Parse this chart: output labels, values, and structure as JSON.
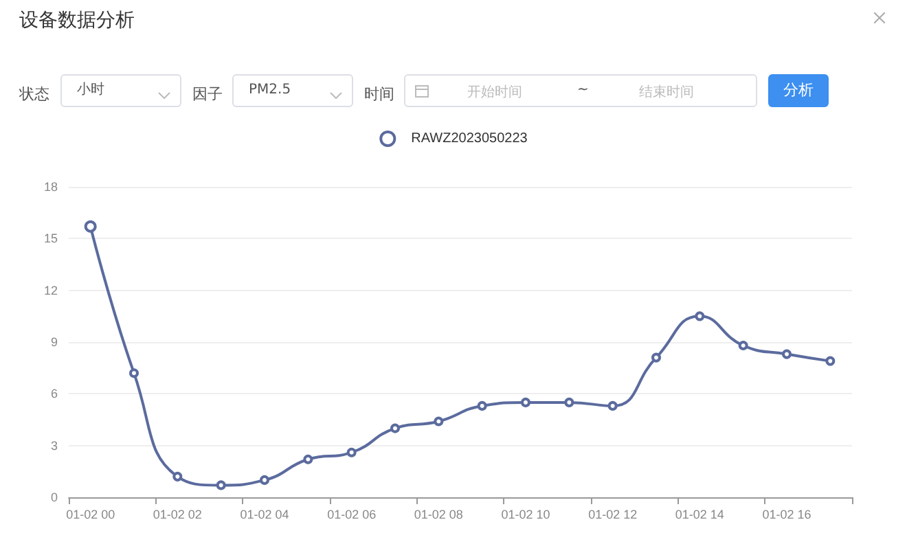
{
  "chart_data": {
    "type": "line",
    "title": "设备数据分析",
    "annotations": [
      "状态",
      "小时",
      "因子",
      "PM2.5",
      "时间",
      "开始时间",
      "~",
      "结束时间",
      "分析"
    ],
    "categories": [
      "01-02 00",
      null,
      "01-02 02",
      null,
      "01-02 04",
      null,
      "01-02 06",
      null,
      "01-02 08",
      null,
      "01-02 10",
      null,
      "01-02 12",
      null,
      "01-02 14",
      null,
      "01-02 16",
      null
    ],
    "series": [
      {
        "name": "RAWZ2023050223",
        "color": "#5b6b9e",
        "values": [
          15.7,
          7.2,
          1.2,
          0.7,
          1.0,
          2.2,
          2.6,
          4.0,
          4.4,
          5.3,
          5.5,
          5.5,
          5.3,
          8.1,
          10.5,
          8.8,
          8.3,
          7.9
        ]
      }
    ],
    "ylim": [
      0,
      18
    ],
    "yticks": [
      0,
      3,
      6,
      9,
      12,
      15,
      18
    ],
    "grid": "y",
    "legend": "top",
    "marker": "circle",
    "line_style": "solid"
  }
}
